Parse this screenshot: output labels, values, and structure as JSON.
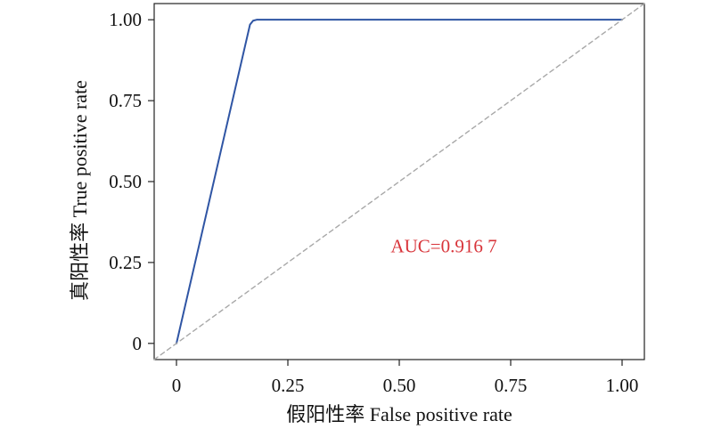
{
  "chart_data": {
    "type": "line",
    "xlabel": "假阳性率 False positive rate",
    "ylabel": "真阳性率 True positive rate",
    "xlim": [
      -0.05,
      1.05
    ],
    "ylim": [
      -0.05,
      1.05
    ],
    "x_ticks": [
      0,
      0.25,
      0.5,
      0.75,
      1.0
    ],
    "x_tick_labels": [
      "0",
      "0.25",
      "0.50",
      "0.75",
      "1.00"
    ],
    "y_ticks": [
      0,
      0.25,
      0.5,
      0.75,
      1.0
    ],
    "y_tick_labels": [
      "0",
      "0.25",
      "0.50",
      "0.75",
      "1.00"
    ],
    "grid": false,
    "series": [
      {
        "x": [
          0,
          0.165,
          0.172,
          0.18,
          1.0
        ],
        "y": [
          0,
          0.985,
          0.997,
          1.0,
          1.0
        ],
        "color": "#2f55a4",
        "style": "solid"
      },
      {
        "x": [
          -0.05,
          1.05
        ],
        "y": [
          -0.05,
          1.05
        ],
        "color": "#a8a8a8",
        "style": "dashed"
      }
    ],
    "annotations": [
      {
        "text": "AUC=0.916 7",
        "x": 0.6,
        "y": 0.3,
        "color": "#d8343a"
      }
    ]
  }
}
